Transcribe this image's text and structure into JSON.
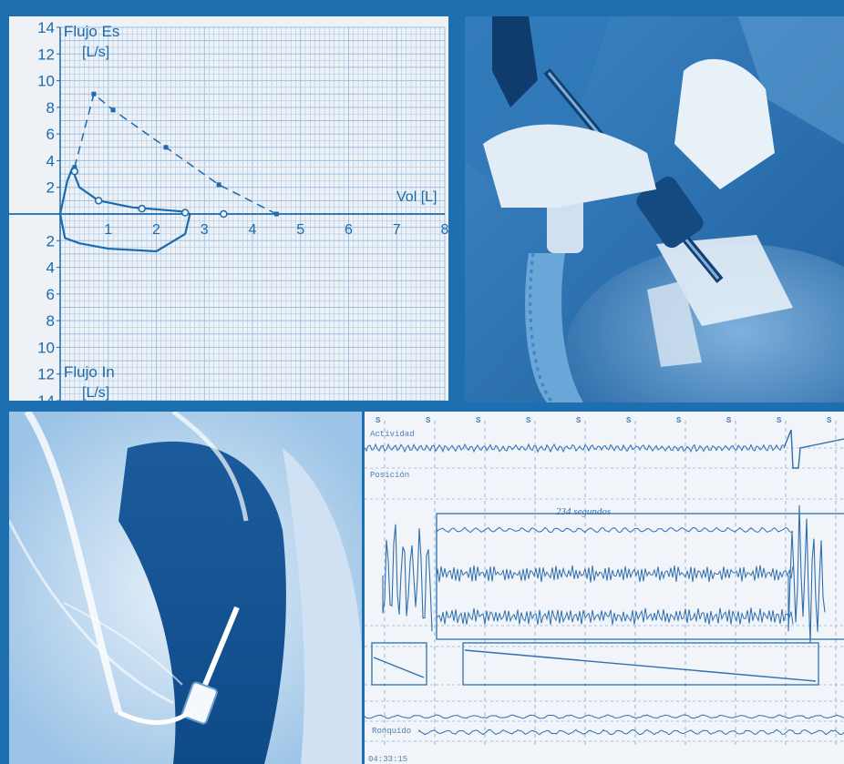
{
  "flow_volume_chart": {
    "y_upper_label": "Flujo Es",
    "y_upper_unit": "[L/s]",
    "y_lower_label": "Flujo In",
    "y_lower_unit": "[L/s]",
    "x_label": "Vol [L]",
    "y_ticks_upper": [
      "14",
      "12",
      "10",
      "8",
      "6",
      "4",
      "2"
    ],
    "y_ticks_lower": [
      "2",
      "4",
      "6",
      "8",
      "10",
      "12",
      "14"
    ],
    "x_ticks": [
      "1",
      "2",
      "3",
      "4",
      "5",
      "6",
      "7",
      "8"
    ],
    "chart_data": {
      "type": "line",
      "xlim": [
        0,
        8
      ],
      "ylim": [
        -14,
        14
      ],
      "grid": true,
      "series": [
        {
          "style": "dashed",
          "x": [
            0.3,
            0.7,
            1.1,
            2.2,
            3.3,
            4.5
          ],
          "y": [
            3.5,
            9,
            7.8,
            5,
            2.2,
            0
          ]
        },
        {
          "style": "solid-loop",
          "x": [
            0,
            0.15,
            0.25,
            0.4,
            0.8,
            1.5,
            2.5,
            2.7,
            2.6,
            2.0,
            1.0,
            0.4,
            0.1,
            0
          ],
          "y": [
            0,
            2.5,
            3.4,
            2.0,
            1.0,
            0.5,
            0.2,
            0,
            -1.5,
            -2.8,
            -2.6,
            -2.2,
            -1.8,
            0
          ]
        },
        {
          "style": "markers",
          "x": [
            0.3,
            0.8,
            1.7,
            2.6,
            3.4
          ],
          "y": [
            3.2,
            1.0,
            0.4,
            0.1,
            0
          ]
        }
      ]
    }
  },
  "photo": {
    "subject": "bronchoscopy-procedure"
  },
  "xray": {
    "subject": "chest-xray-with-stent"
  },
  "polysomnography": {
    "channels": [
      "Actividad",
      "Posición",
      "",
      "",
      "",
      "",
      "Ronquido"
    ],
    "stage_marks": [
      "S",
      "S",
      "S",
      "S",
      "S",
      "S",
      "S",
      "S",
      "S",
      "S"
    ],
    "annotation": "234 segundos",
    "footer_left": "04:33:15"
  },
  "colors": {
    "background": "#1e6fb0",
    "ink": "#1a6aad",
    "grid": "#9cc0e2"
  }
}
